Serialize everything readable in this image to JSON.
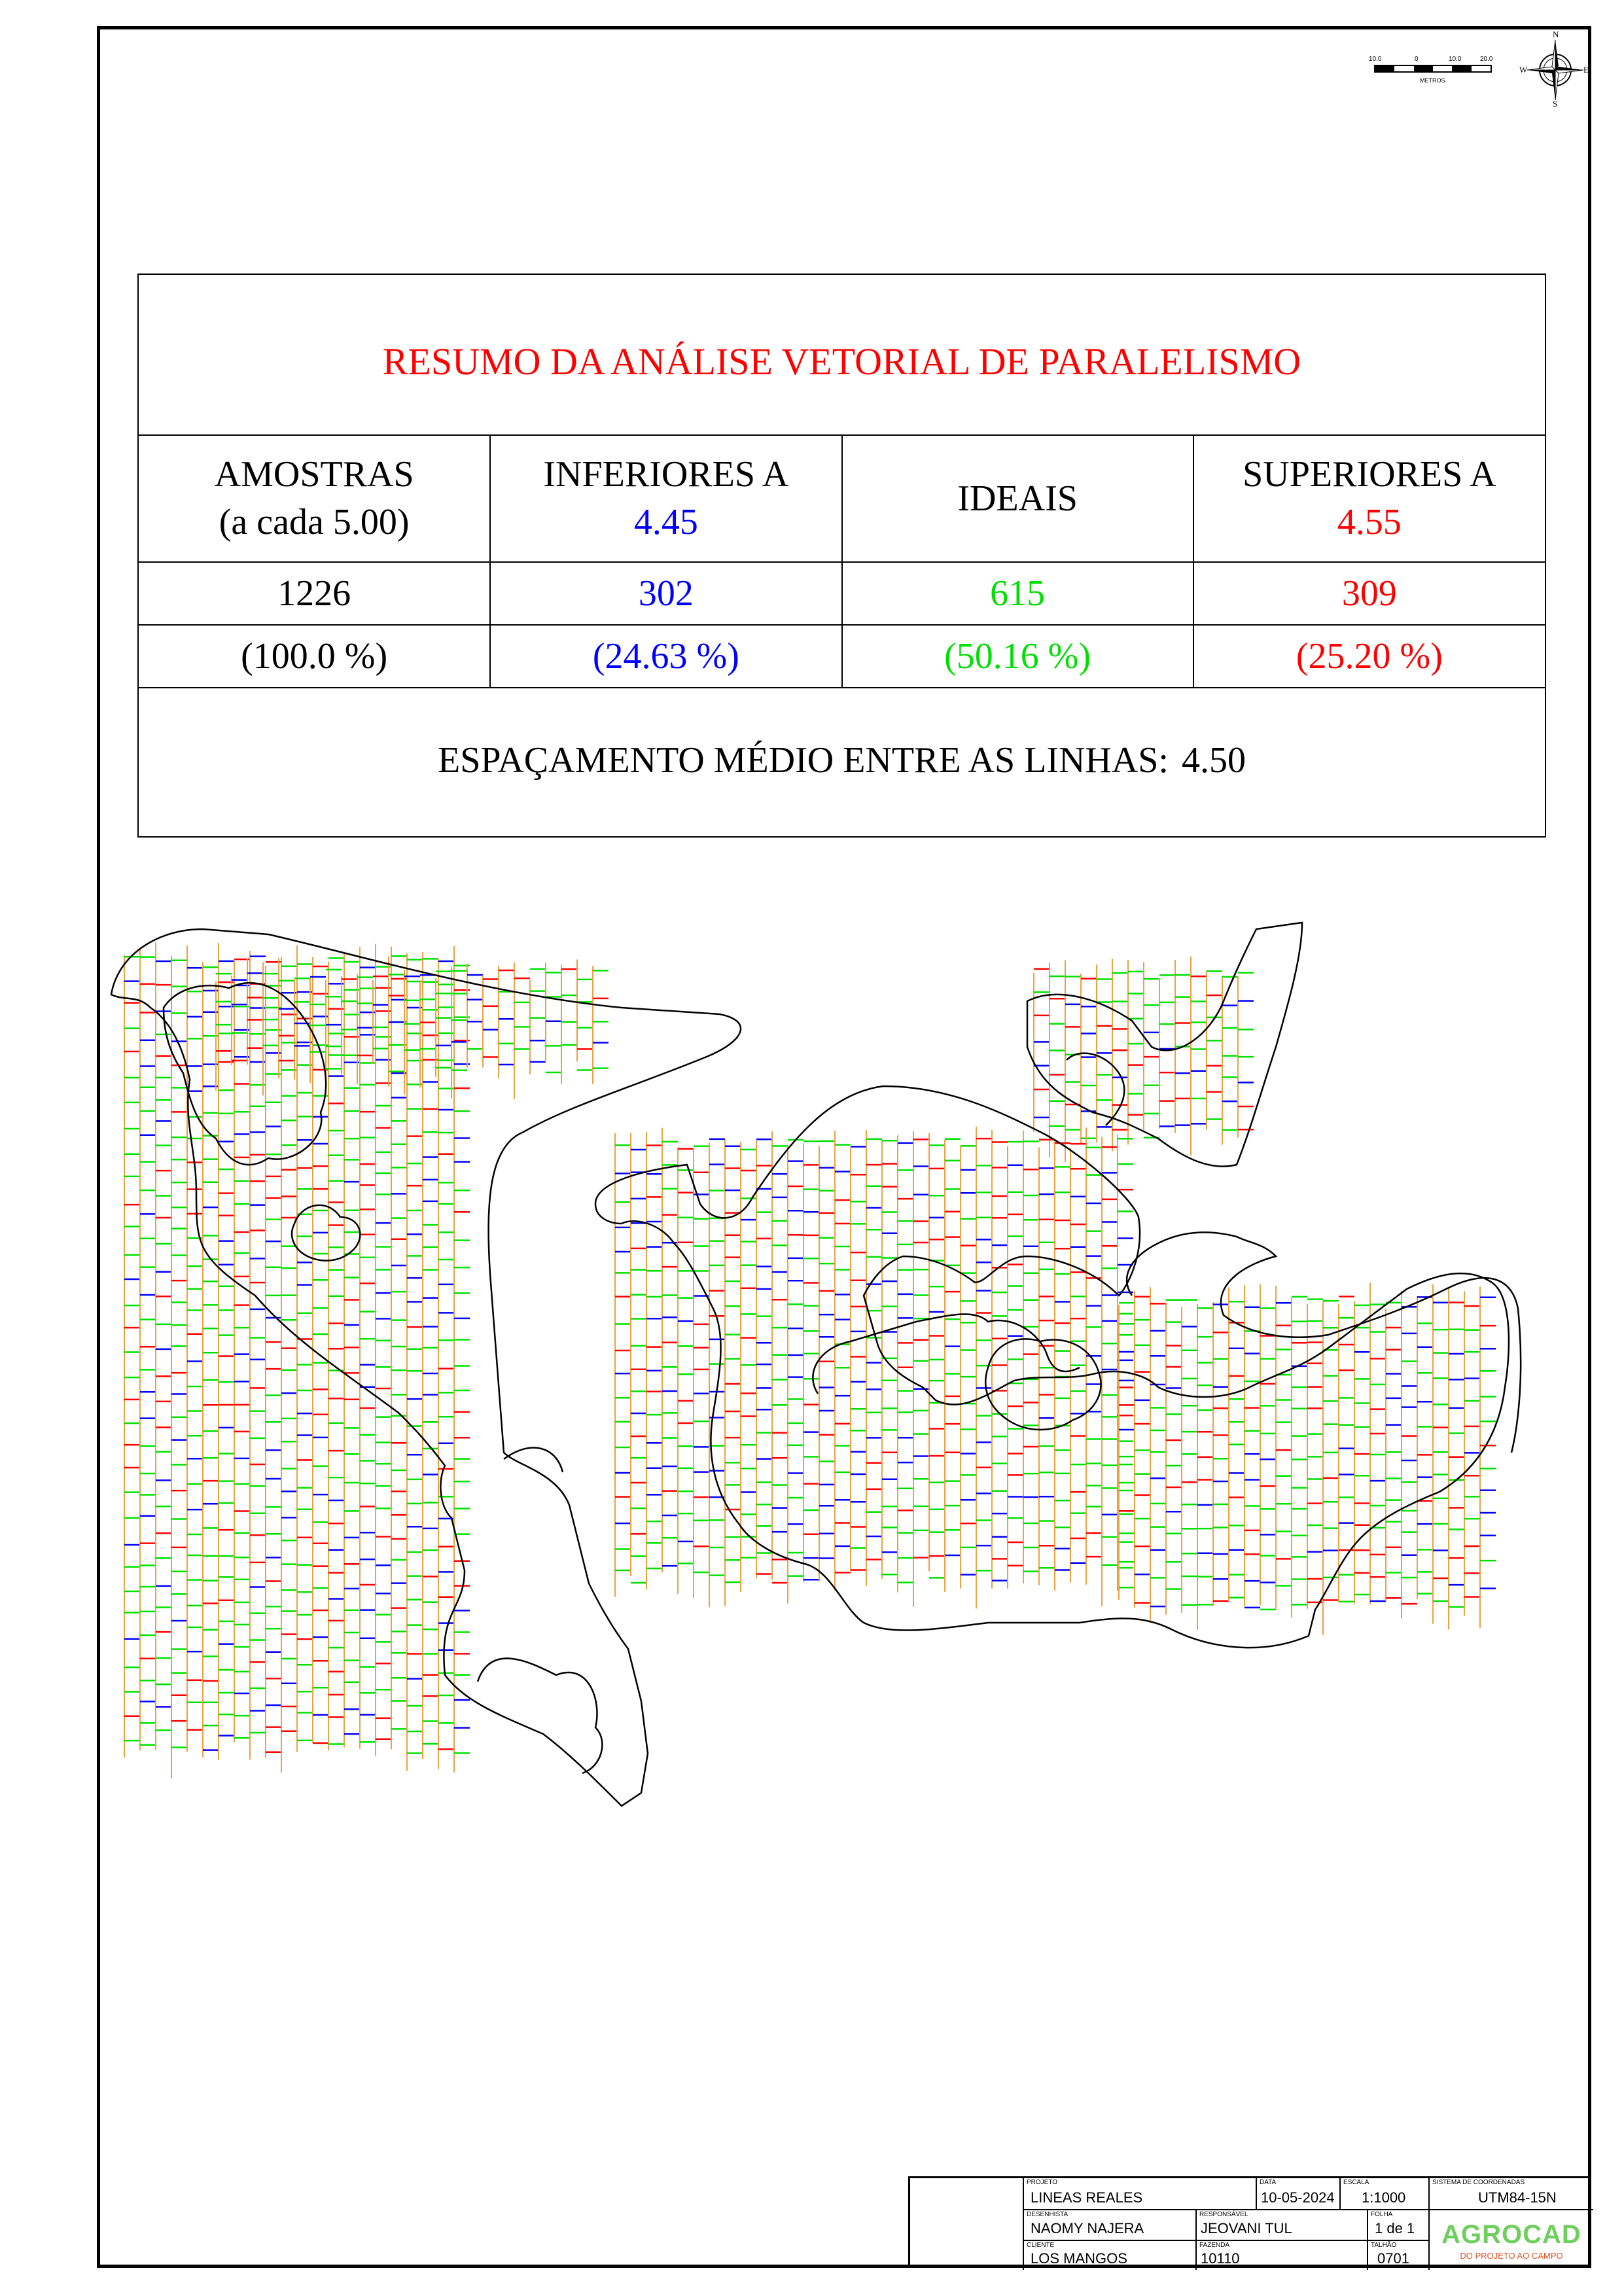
{
  "scale_bar": {
    "ticks": [
      "10.0",
      "0",
      "10.0",
      "20.0"
    ],
    "unit": "METROS"
  },
  "compass": {
    "n": "N",
    "s": "S",
    "e": "E",
    "w": "W"
  },
  "summary": {
    "title": "RESUMO DA ANÁLISE VETORIAL DE PARALELISMO",
    "columns": [
      {
        "line1": "AMOSTRAS",
        "line2": "(a cada 5.00)",
        "color": "#000000"
      },
      {
        "line1": "INFERIORES A",
        "line2": "4.45",
        "color": "#0000ff"
      },
      {
        "line1": "IDEAIS",
        "line2": "",
        "color": "#00e000"
      },
      {
        "line1": "SUPERIORES A",
        "line2": "4.55",
        "color": "#ff0000"
      }
    ],
    "counts": [
      "1226",
      "302",
      "615",
      "309"
    ],
    "percents": [
      "(100.0 %)",
      "(24.63 %)",
      "(50.16 %)",
      "(25.20 %)"
    ],
    "spacing_label": "ESPAÇAMENTO MÉDIO ENTRE AS LINHAS:",
    "spacing_value": "4.50"
  },
  "map_legend_colors": {
    "ideal": "#00e000",
    "below": "#0000ff",
    "above": "#ff0000",
    "row_lines": "#f0a040",
    "boundary": "#000000"
  },
  "title_block": {
    "projeto_label": "PROJETO",
    "projeto": "LINEAS REALES",
    "data_label": "DATA",
    "data": "10-05-2024",
    "escala_label": "ESCALA",
    "escala": "1:1000",
    "sistema_label": "SISTEMA DE COORDENADAS",
    "sistema": "UTM84-15N",
    "desenhista_label": "DESENHISTA",
    "desenhista": "NAOMY NAJERA",
    "responsavel_label": "RESPONSÁVEL",
    "responsavel": "JEOVANI TUL",
    "folha_label": "FOLHA",
    "folha": "1 de 1",
    "cliente_label": "CLIENTE",
    "cliente": "LOS MANGOS",
    "fazenda_label": "FAZENDA",
    "fazenda": "10110",
    "talhao_label": "TALHÃO",
    "talhao": "0701",
    "logo_name": "AGROCAD",
    "logo_tag": "DO PROJETO AO CAMPO"
  }
}
